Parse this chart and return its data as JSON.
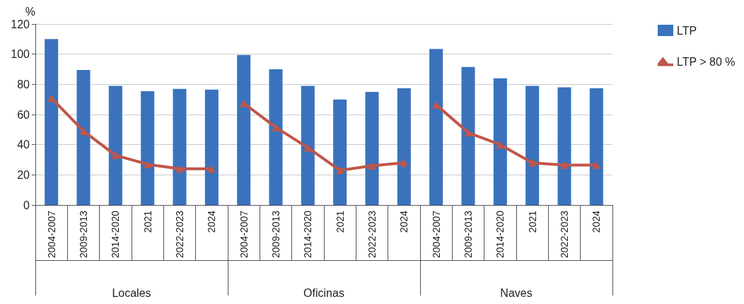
{
  "chart_data": {
    "type": "bar",
    "ylabel": "%",
    "categories": [
      "2004-2007",
      "2009-2013",
      "2014-2020",
      "2021",
      "2022-2023",
      "2024",
      "2004-2007",
      "2009-2013",
      "2014-2020",
      "2021",
      "2022-2023",
      "2024",
      "2004-2007",
      "2009-2013",
      "2014-2020",
      "2021",
      "2022-2023",
      "2024"
    ],
    "annotations": [
      "Locales",
      "Oficinas",
      "Naves"
    ],
    "series": [
      {
        "name": "LTP",
        "color": "#3a72bd",
        "values": [
          110,
          89.5,
          79,
          75.5,
          77,
          76.5,
          99.5,
          90,
          79,
          70,
          75,
          77.5,
          103.5,
          91.5,
          84,
          79,
          78,
          77.5
        ]
      },
      {
        "name": "LTP > 80 %",
        "type": "line",
        "color": "#c0564a",
        "values": [
          71,
          49,
          33,
          27,
          24,
          24,
          null,
          null,
          null,
          null,
          null,
          null,
          null,
          null,
          null,
          null,
          null,
          null
        ]
      },
      {
        "type": "line",
        "color": "#c0564a",
        "values": [
          null,
          null,
          null,
          null,
          null,
          null,
          67.5,
          51.5,
          38,
          23,
          26,
          28,
          null,
          null,
          null,
          null,
          null,
          null
        ]
      },
      {
        "type": "line",
        "color": "#c0564a",
        "values": [
          null,
          null,
          null,
          null,
          null,
          null,
          null,
          null,
          null,
          null,
          null,
          null,
          66.5,
          48,
          40,
          28,
          26.5,
          26.5
        ]
      }
    ],
    "ylim": [
      0,
      120
    ],
    "yticks": [
      0,
      20,
      40,
      60,
      80,
      100,
      120
    ],
    "grid": "y",
    "legend": "top right",
    "marker": "triangle",
    "line_style": "solid"
  }
}
